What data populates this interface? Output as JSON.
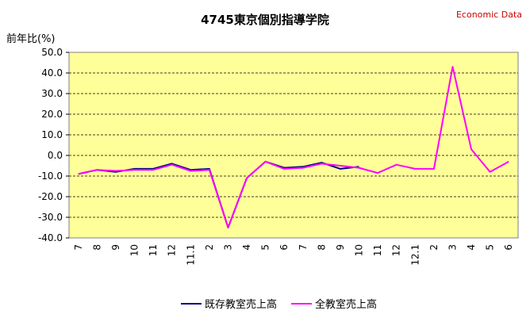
{
  "chart_data": {
    "type": "line",
    "title": "4745東京個別指導学院",
    "source": "Economic Data",
    "ylabel": "前年比(%)",
    "ylim": [
      -40,
      50
    ],
    "yticks": [
      "50.0",
      "40.0",
      "30.0",
      "20.0",
      "10.0",
      "0.0",
      "-10.0",
      "-20.0",
      "-30.0",
      "-40.0"
    ],
    "categories": [
      "7",
      "8",
      "9",
      "10",
      "11",
      "12",
      "11.1",
      "2",
      "3",
      "4",
      "5",
      "6",
      "7",
      "8",
      "9",
      "10",
      "11",
      "12",
      "12.1",
      "2",
      "3",
      "4",
      "5",
      "6"
    ],
    "grid": true,
    "legend_position": "bottom",
    "series": [
      {
        "name": "既存教室売上高",
        "color": "#000080",
        "values": [
          -9,
          -7,
          -8,
          -6.5,
          -6.5,
          -4,
          -7,
          -6.5,
          -35,
          -11,
          -3,
          -6,
          -5.5,
          -3.5,
          -6.5,
          -5.5,
          null,
          null,
          null,
          null,
          null,
          null,
          null,
          null
        ]
      },
      {
        "name": "全教室売上高",
        "color": "#ff00ff",
        "values": [
          -9,
          -7,
          -7.5,
          -7,
          -7,
          -4.5,
          -7.5,
          -7,
          -35,
          -11,
          -3,
          -6.5,
          -6,
          -4,
          -5,
          -6,
          -8.5,
          -4.5,
          -6.5,
          -6.5,
          43,
          3,
          -8,
          -3
        ]
      }
    ]
  }
}
